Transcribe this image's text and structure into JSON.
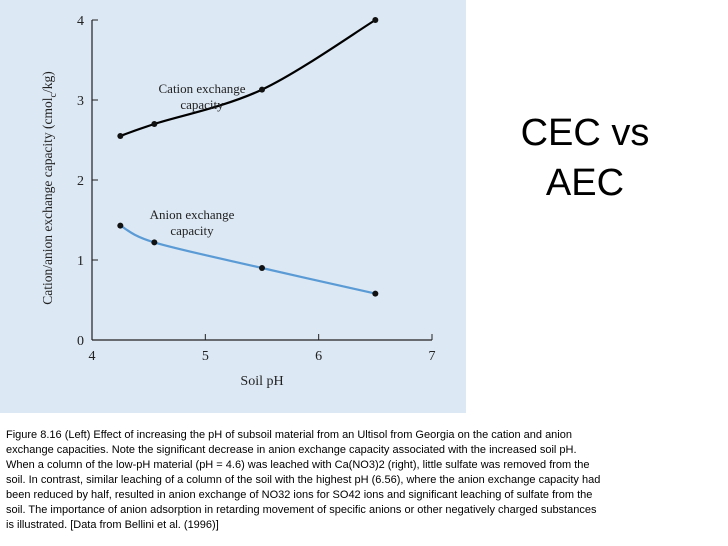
{
  "slide": {
    "title_line1": "CEC vs",
    "title_line2": "AEC"
  },
  "chart_data": {
    "type": "line",
    "xlabel": "Soil pH",
    "ylabel": "Cation/anion exchange capacity (cmol",
    "ylabel_subscript": "c",
    "ylabel_suffix": "/kg)",
    "xlim": [
      4,
      7
    ],
    "ylim": [
      0,
      4
    ],
    "x_ticks": [
      "4",
      "5",
      "6",
      "7"
    ],
    "y_ticks": [
      "0",
      "1",
      "2",
      "3",
      "4"
    ],
    "grid": false,
    "series": [
      {
        "name": "Cation exchange capacity",
        "label_line1": "Cation exchange",
        "label_line2": "capacity",
        "color": "#000000",
        "points": [
          {
            "x": 4.25,
            "y": 2.55
          },
          {
            "x": 4.55,
            "y": 2.7
          },
          {
            "x": 5.5,
            "y": 3.13
          },
          {
            "x": 6.5,
            "y": 4.0
          }
        ]
      },
      {
        "name": "Anion exchange capacity",
        "label_line1": "Anion exchange",
        "label_line2": "capacity",
        "color": "#5b9bd5",
        "points": [
          {
            "x": 4.25,
            "y": 1.43
          },
          {
            "x": 4.55,
            "y": 1.22
          },
          {
            "x": 5.5,
            "y": 0.9
          },
          {
            "x": 6.5,
            "y": 0.58
          }
        ]
      }
    ]
  },
  "caption": {
    "text": "Figure 8.16  (Left) Effect of increasing the pH of subsoil material from an Ultisol from Georgia on the cation and anion exchange capacities. Note the significant decrease in anion exchange capacity associated with the increased soil pH. When a column of the low-pH material (pH = 4.6) was leached with Ca(NO3)2 (right), little sulfate was removed from the soil. In contrast, similar leaching of a column of the soil with the highest pH (6.56), where the anion exchange capacity had been reduced by half, resulted in anion exchange of NO32 ions for SO42 ions and significant leaching of sulfate from the soil. The importance of anion adsorption in retarding movement of specific anions or other negatively charged substances is illustrated. [Data from Bellini et al. (1996)]"
  }
}
